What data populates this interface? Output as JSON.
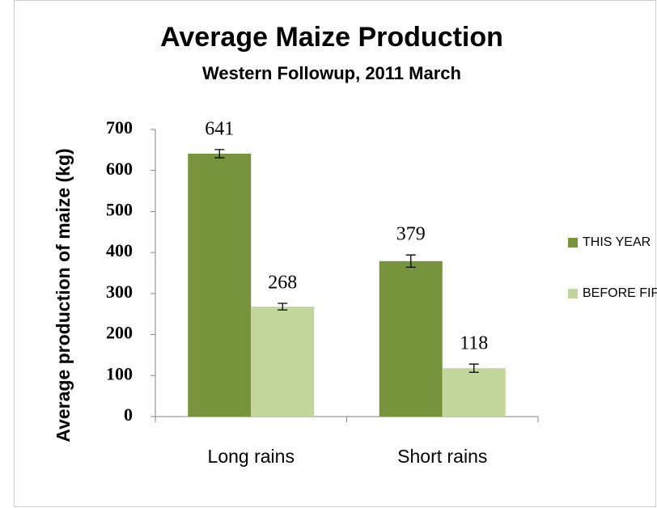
{
  "chart_data": {
    "type": "bar",
    "title": "Average Maize Production",
    "subtitle": "Western Followup, 2011 March",
    "y_label": "Average production of maize (kg)",
    "categories": [
      "Long rains",
      "Short rains"
    ],
    "series": [
      {
        "name": "THIS YEAR",
        "color": "#77933c",
        "values": [
          641,
          379
        ],
        "errors": [
          10,
          15
        ]
      },
      {
        "name": "BEFORE FIPS",
        "color": "#c3d69b",
        "values": [
          268,
          118
        ],
        "errors": [
          8,
          10
        ]
      }
    ],
    "ylim": [
      0,
      700
    ],
    "yticks": [
      0,
      100,
      200,
      300,
      400,
      500,
      600,
      700
    ],
    "legend": "right"
  }
}
